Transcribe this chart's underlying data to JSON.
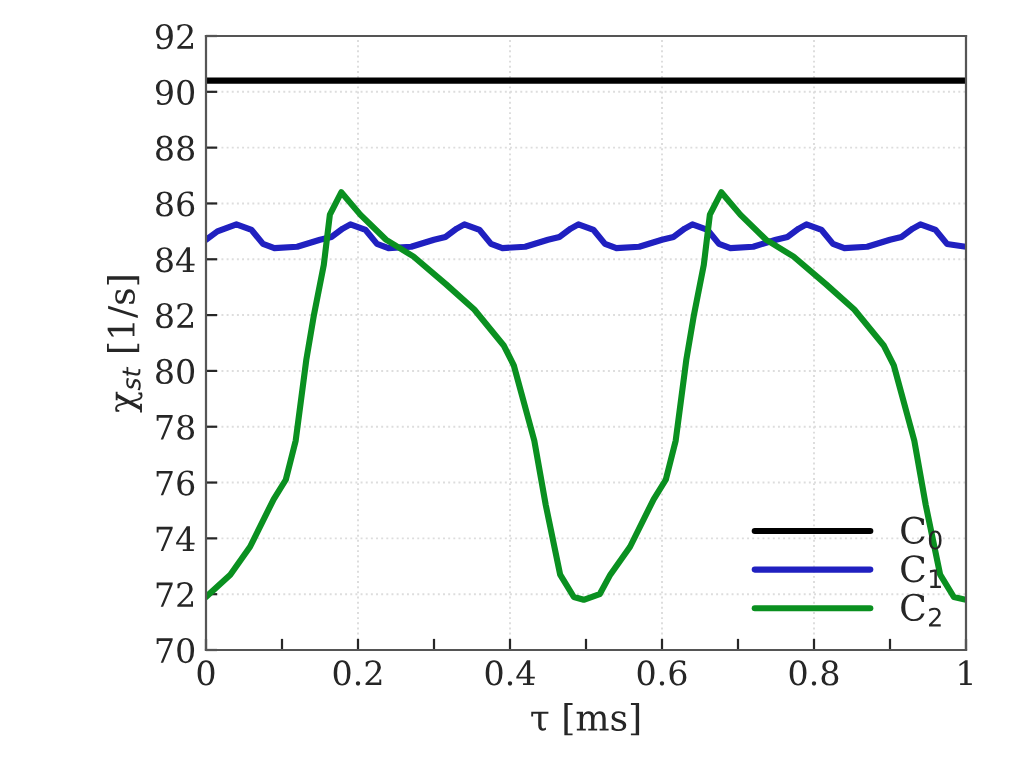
{
  "chart_data": {
    "type": "line",
    "xlabel": "τ [ms]",
    "ylabel": "χ$_{st}$ [1/s]",
    "xlim": [
      0,
      1
    ],
    "ylim": [
      70,
      92
    ],
    "xticks": [
      0,
      {
        "value": 0.1,
        "label": null
      },
      0.2,
      {
        "value": 0.3,
        "label": null
      },
      0.4,
      {
        "value": 0.5,
        "label": null
      },
      0.6,
      {
        "value": 0.7,
        "label": null
      },
      0.8,
      {
        "value": 0.9,
        "label": null
      },
      1
    ],
    "yticks": [
      70,
      72,
      74,
      76,
      78,
      80,
      82,
      84,
      86,
      88,
      90,
      92
    ],
    "grid": true,
    "legend": "bottom right",
    "line_style": "solid",
    "marker": "none",
    "series": [
      {
        "name": "C$_{0}$",
        "color": "#000000",
        "x": [
          0,
          1
        ],
        "values": [
          90.4,
          90.4
        ]
      },
      {
        "name": "C$_{1}$",
        "color": "#2020c0",
        "x": [
          0,
          0.015,
          0.04,
          0.06,
          0.075,
          0.09,
          0.12,
          0.15,
          0.165,
          0.18,
          0.19,
          0.21,
          0.225,
          0.24,
          0.27,
          0.3,
          0.315,
          0.33,
          0.34,
          0.36,
          0.375,
          0.39,
          0.42,
          0.45,
          0.465,
          0.48,
          0.49,
          0.51,
          0.525,
          0.54,
          0.57,
          0.6,
          0.615,
          0.63,
          0.64,
          0.66,
          0.675,
          0.69,
          0.72,
          0.75,
          0.765,
          0.78,
          0.79,
          0.81,
          0.825,
          0.84,
          0.87,
          0.9,
          0.915,
          0.93,
          0.94,
          0.96,
          0.975,
          1
        ],
        "values": [
          84.7,
          85.0,
          85.25,
          85.05,
          84.55,
          84.4,
          84.45,
          84.7,
          84.8,
          85.1,
          85.25,
          85.05,
          84.55,
          84.4,
          84.45,
          84.7,
          84.8,
          85.1,
          85.25,
          85.05,
          84.55,
          84.4,
          84.45,
          84.7,
          84.8,
          85.1,
          85.25,
          85.05,
          84.55,
          84.4,
          84.45,
          84.7,
          84.8,
          85.1,
          85.25,
          85.05,
          84.55,
          84.4,
          84.45,
          84.7,
          84.8,
          85.1,
          85.25,
          85.05,
          84.55,
          84.4,
          84.45,
          84.7,
          84.8,
          85.1,
          85.25,
          85.05,
          84.55,
          84.45
        ]
      },
      {
        "name": "C$_{2}$",
        "color": "#0a9020",
        "x": [
          0,
          0.032,
          0.058,
          0.089,
          0.105,
          0.118,
          0.132,
          0.142,
          0.155,
          0.163,
          0.178,
          0.203,
          0.237,
          0.273,
          0.316,
          0.353,
          0.392,
          0.405,
          0.432,
          0.447,
          0.466,
          0.484,
          0.497,
          0.518,
          0.532,
          0.558,
          0.589,
          0.605,
          0.618,
          0.632,
          0.642,
          0.655,
          0.663,
          0.678,
          0.703,
          0.737,
          0.773,
          0.816,
          0.853,
          0.892,
          0.905,
          0.932,
          0.947,
          0.966,
          0.984,
          1
        ],
        "values": [
          71.9,
          72.7,
          73.7,
          75.4,
          76.1,
          77.5,
          80.4,
          82.0,
          83.8,
          85.6,
          86.4,
          85.6,
          84.7,
          84.1,
          83.1,
          82.2,
          80.9,
          80.2,
          77.5,
          75.2,
          72.7,
          71.9,
          71.8,
          72.0,
          72.7,
          73.7,
          75.4,
          76.1,
          77.5,
          80.4,
          82.0,
          83.8,
          85.6,
          86.4,
          85.6,
          84.7,
          84.1,
          83.1,
          82.2,
          80.9,
          80.2,
          77.5,
          75.2,
          72.7,
          71.9,
          71.8
        ]
      }
    ]
  }
}
